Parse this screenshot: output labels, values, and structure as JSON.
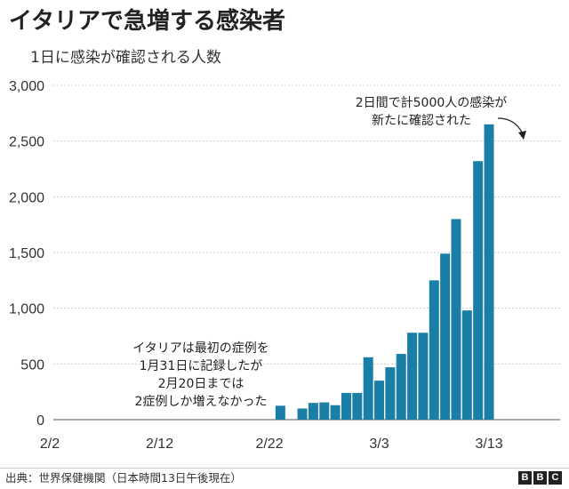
{
  "title": "イタリアで急増する感染者",
  "subtitle": "1日に感染が確認される人数",
  "chart_data": {
    "type": "bar",
    "title": "イタリアで急増する感染者",
    "subtitle": "1日に感染が確認される人数",
    "xlabel": "",
    "ylabel": "",
    "ylim": [
      0,
      3000
    ],
    "yticks": [
      0,
      500,
      1000,
      1500,
      2000,
      2500,
      3000
    ],
    "ytick_labels": [
      "0",
      "500",
      "1,000",
      "1,500",
      "2,000",
      "2,500",
      "3,000"
    ],
    "grid": true,
    "bar_color": "#1a7fa6",
    "xtick_labels": [
      "2/2",
      "2/12",
      "2/22",
      "3/3",
      "3/13"
    ],
    "xtick_dates": [
      "2/2",
      "2/12",
      "2/22",
      "3/3",
      "3/13"
    ],
    "categories": [
      "2/1",
      "2/2",
      "2/3",
      "2/4",
      "2/5",
      "2/6",
      "2/7",
      "2/8",
      "2/9",
      "2/10",
      "2/11",
      "2/12",
      "2/13",
      "2/14",
      "2/15",
      "2/16",
      "2/17",
      "2/18",
      "2/19",
      "2/20",
      "2/21",
      "2/22",
      "2/23",
      "2/24",
      "2/25",
      "2/26",
      "2/27",
      "2/28",
      "2/29",
      "3/1",
      "3/2",
      "3/3",
      "3/4",
      "3/5",
      "3/6",
      "3/7",
      "3/8",
      "3/9",
      "3/10",
      "3/11",
      "3/12",
      "3/13"
    ],
    "values": [
      0,
      0,
      0,
      0,
      0,
      0,
      0,
      0,
      0,
      0,
      0,
      0,
      0,
      0,
      0,
      0,
      0,
      0,
      0,
      0,
      0,
      0,
      125,
      0,
      100,
      150,
      155,
      130,
      240,
      240,
      560,
      350,
      470,
      590,
      780,
      780,
      1250,
      1490,
      1800,
      980,
      2320,
      2650
    ],
    "annotations": [
      {
        "text": [
          "イタリアは最初の症例を",
          "1月31日に記録したが",
          "2月20日までは",
          "2症例しか増えなかった"
        ]
      },
      {
        "text": [
          "2日間で計5000人の感染が",
          "新たに確認された"
        ],
        "target": "3/12"
      }
    ]
  },
  "footer": {
    "source": "出典：世界保健機関（日本時間13日午後現在）",
    "logo_letters": [
      "B",
      "B",
      "C"
    ]
  }
}
